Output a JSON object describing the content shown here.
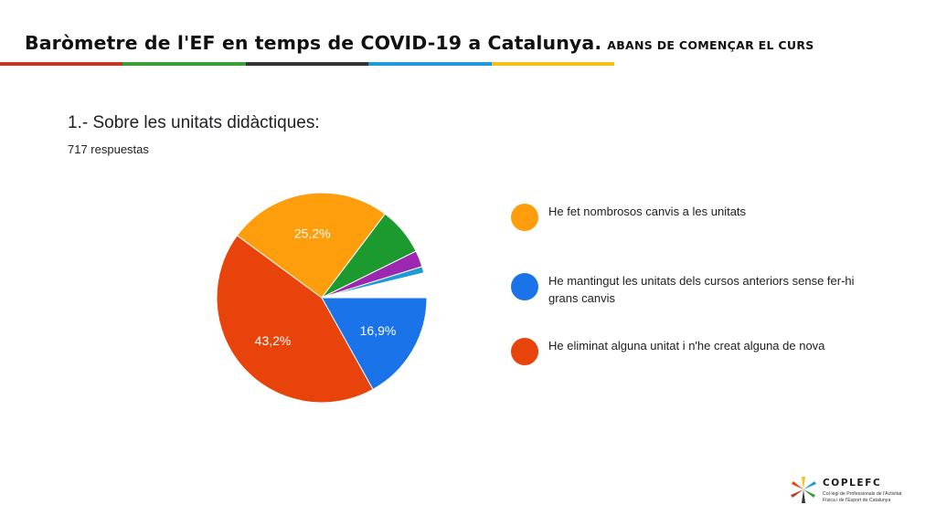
{
  "header": {
    "title": "Baròmetre de l'EF en temps de COVID-19 a Catalunya.",
    "subtitle": "ABANS DE COMENÇAR EL CURS",
    "bar_colors": [
      "#c0392b",
      "#3aa035",
      "#333333",
      "#1e9ad6",
      "#f2c21b"
    ]
  },
  "question": {
    "title": "1.- Sobre les unitats didàctiques:",
    "responses": "717 respuestas"
  },
  "chart_data": {
    "type": "pie",
    "title": "1.- Sobre les unitats didàctiques:",
    "slices": [
      {
        "name": "He mantingut les unitats dels cursos anteriors sense fer-hi grans canvis",
        "value": 16.9,
        "label": "16,9%",
        "color": "#1a73e8",
        "in_legend": true
      },
      {
        "name": "He eliminat alguna unitat i n'he creat alguna de nova",
        "value": 43.2,
        "label": "43,2%",
        "color": "#e8430a",
        "in_legend": true
      },
      {
        "name": "He fet nombrosos canvis a les unitats",
        "value": 25.2,
        "label": "25,2%",
        "color": "#ff9e0c",
        "in_legend": true
      },
      {
        "name": "",
        "value": 7.4,
        "label": "",
        "color": "#1d9a2d",
        "in_legend": false
      },
      {
        "name": "",
        "value": 2.5,
        "label": "",
        "color": "#9c27b0",
        "in_legend": false
      },
      {
        "name": "",
        "value": 1.0,
        "label": "",
        "color": "#1e9ad6",
        "in_legend": false
      },
      {
        "name": "",
        "value": 3.8,
        "label": "",
        "color": "#ffffff",
        "in_legend": false
      }
    ],
    "legend_position": "right"
  },
  "legend": [
    {
      "label": "He fet nombrosos canvis a les unitats",
      "color": "#ff9e0c"
    },
    {
      "label": "He mantingut les unitats dels cursos anteriors sense fer-hi grans canvis",
      "color": "#1a73e8"
    },
    {
      "label": "He eliminat alguna unitat i n'he creat alguna de nova",
      "color": "#e8430a"
    }
  ],
  "logo": {
    "name": "COPLEFC",
    "line1": "Col·legi de Professionals de l'Activitat",
    "line2": "Física i de l'Esport de Catalunya"
  }
}
